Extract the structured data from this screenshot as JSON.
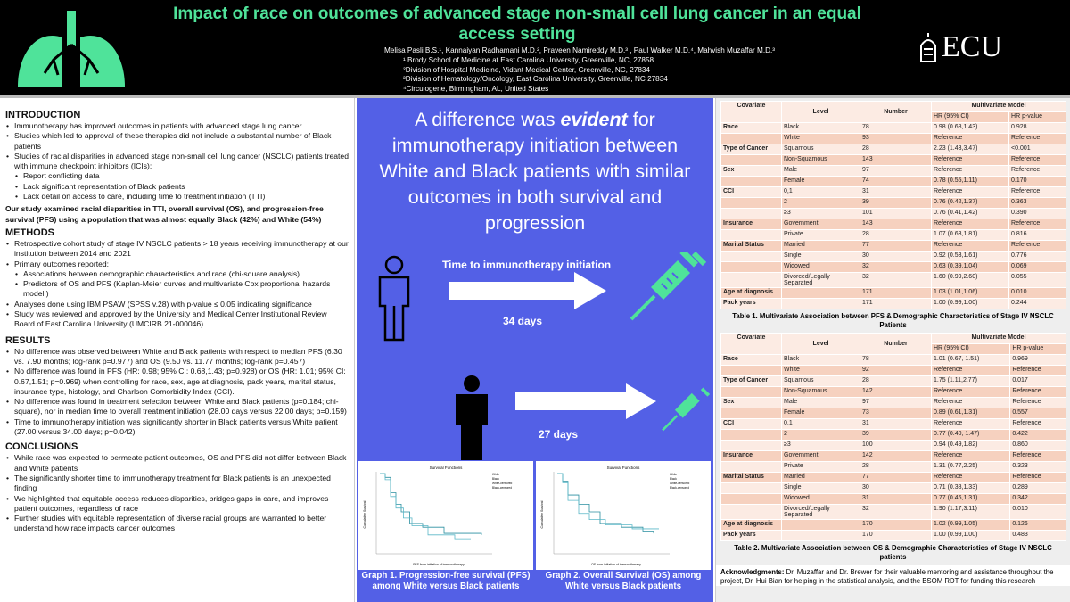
{
  "header": {
    "title": "Impact of race on outcomes of advanced stage non-small cell lung cancer in an equal access setting",
    "authors": "Melisa Pasli B.S.¹, Kannaiyan Radhamani M.D.², Praveen Namireddy M.D.³ , Paul Walker M.D.⁴, Mahvish Muzaffar M.D.³",
    "affiliations": [
      "¹ Brody School of Medicine at East Carolina University, Greenville, NC, 27858",
      "²Division of Hospital Medicine, Vidant Medical Center, Greenville, NC, 27834",
      "³Division of Hematology/Oncology, East Carolina University, Greenville, NC 27834",
      "⁴Circulogene, Birmingham, AL, United States"
    ],
    "logo_text": "ECU",
    "accent": "#4fe39a"
  },
  "intro": {
    "heading": "INTRODUCTION",
    "items": [
      "Immunotherapy has improved outcomes in patients with advanced stage lung cancer",
      "Studies which led to approval of these therapies did not include a substantial number of Black patients",
      "Studies of racial disparities in advanced stage non-small cell lung cancer (NSCLC) patients treated with immune checkpoint inhibitors (ICIs):"
    ],
    "subitems": [
      "Report conflicting data",
      "Lack significant representation of Black patients",
      "Lack detail on access to care, including time to treatment initiation (TTI)"
    ],
    "aim": "Our study examined racial disparities in TTI, overall survival (OS), and progression-free survival (PFS) using a population that was almost equally Black (42%) and White (54%)"
  },
  "methods": {
    "heading": "METHODS",
    "items": [
      "Retrospective cohort study of stage IV NSCLC patients > 18 years receiving immunotherapy at our institution between 2014 and 2021",
      "Primary outcomes reported:",
      "Associations between demographic characteristics and race (chi-square analysis)",
      "Predictors of OS and PFS (Kaplan-Meier curves and multivariate Cox proportional hazards model )",
      "Analyses done using IBM PSAW (SPSS v.28) with p-value ≤ 0.05 indicating significance",
      "Study was reviewed and approved by the University and Medical Center Institutional Review Board of East Carolina University (UMCIRB 21-000046)"
    ]
  },
  "results": {
    "heading": "RESULTS",
    "items": [
      "No difference was observed between White and Black patients with respect to median PFS (6.30 vs. 7.90 months; log-rank p=0.977) and OS (9.50 vs. 11.77 months; log-rank p=0.457)",
      "No difference was found in PFS (HR: 0.98; 95% CI: 0.68,1.43; p=0.928) or OS (HR: 1.01; 95% CI: 0.67,1.51; p=0.969) when controlling for race, sex, age at diagnosis, pack years, marital status, insurance type, histology, and Charlson Comorbidity Index (CCI).",
      "No difference was found in treatment selection between White and Black patients (p=0.184; chi-square), nor in median time to overall treatment initiation (28.00 days versus 22.00 days; p=0.159)",
      "Time to immunotherapy initiation was significantly shorter in Black patients versus White patient (27.00 versus 34.00 days; p=0.042)"
    ]
  },
  "conclusions": {
    "heading": "CONCLUSIONS",
    "items": [
      "While race was expected to permeate patient outcomes, OS and PFS did not differ between Black and White patients",
      "The significantly shorter time to immunotherapy treatment for Black patients is an unexpected finding",
      "We highlighted that equitable access reduces disparities, bridges gaps in care, and improves patient outcomes, regardless of race",
      "Further studies with equitable representation of diverse racial groups are warranted to better understand how race impacts cancer outcomes"
    ]
  },
  "middle": {
    "headline_pre": "A difference was ",
    "headline_em": "evident",
    "headline_post": " for immunotherapy initiation between White and Black patients with similar outcomes in both survival and progression",
    "tti_label": "Time to immunotherapy initiation",
    "white_days": "34 days",
    "black_days": "27 days",
    "bg": "#5360e6",
    "graphs": [
      {
        "title": "Survival Functions",
        "ylabel": "Cumulative Survival",
        "xlabel": "PFS from initiation of immunotherapy",
        "legend": [
          "White",
          "Black",
          "White-censored",
          "Black-censored"
        ],
        "caption": "Graph 1. Progression-free survival (PFS) among White versus Black patients"
      },
      {
        "title": "Survival Functions",
        "ylabel": "Cumulative Survival",
        "xlabel": "OS from initiation of immunotherapy",
        "legend": [
          "White",
          "Black",
          "White-censored",
          "Black-censored"
        ],
        "caption": "Graph 2. Overall Survival (OS) among White versus Black patients"
      }
    ]
  },
  "tables": [
    {
      "header": [
        "Covariate",
        "Level",
        "Number",
        "Multivariate Model",
        "HR (95% CI)",
        "HR p-value"
      ],
      "rows": [
        [
          "Race",
          "Black",
          "78",
          "0.98 (0.68,1.43)",
          "0.928"
        ],
        [
          "",
          "White",
          "93",
          "Reference",
          "Reference"
        ],
        [
          "Type of Cancer",
          "Squamous",
          "28",
          "2.23 (1.43,3.47)",
          "<0.001"
        ],
        [
          "",
          "Non-Squamous",
          "143",
          "Reference",
          "Reference"
        ],
        [
          "Sex",
          "Male",
          "97",
          "Reference",
          "Reference"
        ],
        [
          "",
          "Female",
          "74",
          "0.78 (0.55,1.11)",
          "0.170"
        ],
        [
          "CCI",
          "0,1",
          "31",
          "Reference",
          "Reference"
        ],
        [
          "",
          "2",
          "39",
          "0.76 (0.42,1.37)",
          "0.363"
        ],
        [
          "",
          "≥3",
          "101",
          "0.76 (0.41,1.42)",
          "0.390"
        ],
        [
          "Insurance",
          "Government",
          "143",
          "Reference",
          "Reference"
        ],
        [
          "",
          "Private",
          "28",
          "1.07 (0.63,1.81)",
          "0.816"
        ],
        [
          "Marital Status",
          "Married",
          "77",
          "Reference",
          "Reference"
        ],
        [
          "",
          "Single",
          "30",
          "0.92 (0.53,1.61)",
          "0.776"
        ],
        [
          "",
          "Widowed",
          "32",
          "0.63 (0.39,1.04)",
          "0.069"
        ],
        [
          "",
          "Divorced/Legally Separated",
          "32",
          "1.60 (0.99,2.60)",
          "0.055"
        ],
        [
          "Age at diagnosis",
          "",
          "171",
          "1.03 (1.01,1.06)",
          "0.010"
        ],
        [
          "Pack years",
          "",
          "171",
          "1.00 (0.99,1.00)",
          "0.244"
        ]
      ],
      "caption": "Table 1. Multivariate Association between PFS &  Demographic Characteristics of Stage IV NSCLC Patients"
    },
    {
      "header": [
        "Covariate",
        "Level",
        "Number",
        "Multivariate Model",
        "HR (95% CI)",
        "HR p-value"
      ],
      "rows": [
        [
          "Race",
          "Black",
          "78",
          "1.01 (0.67, 1.51)",
          "0.969"
        ],
        [
          "",
          "White",
          "92",
          "Reference",
          "Reference"
        ],
        [
          "Type of Cancer",
          "Squamous",
          "28",
          "1.75 (1.11,2.77)",
          "0.017"
        ],
        [
          "",
          "Non-Squamous",
          "142",
          "Reference",
          "Reference"
        ],
        [
          "Sex",
          "Male",
          "97",
          "Reference",
          "Reference"
        ],
        [
          "",
          "Female",
          "73",
          "0.89 (0.61,1.31)",
          "0.557"
        ],
        [
          "CCI",
          "0,1",
          "31",
          "Reference",
          "Reference"
        ],
        [
          "",
          "2",
          "39",
          "0.77 (0.40, 1.47)",
          "0.422"
        ],
        [
          "",
          "≥3",
          "100",
          "0.94 (0.49,1.82)",
          "0.860"
        ],
        [
          "Insurance",
          "Government",
          "142",
          "Reference",
          "Reference"
        ],
        [
          "",
          "Private",
          "28",
          "1.31 (0.77,2.25)",
          "0.323"
        ],
        [
          "Marital Status",
          "Married",
          "77",
          "Reference",
          "Reference"
        ],
        [
          "",
          "Single",
          "30",
          "0.71 (0.38,1.33)",
          "0.289"
        ],
        [
          "",
          "Widowed",
          "31",
          "0.77 (0.46,1.31)",
          "0.342"
        ],
        [
          "",
          "Divorced/Legally Separated",
          "32",
          "1.90 (1.17,3.11)",
          "0.010"
        ],
        [
          "Age at diagnosis",
          "",
          "170",
          "1.02 (0.99,1.05)",
          "0.126"
        ],
        [
          "Pack years",
          "",
          "170",
          "1.00 (0.99,1.00)",
          "0.483"
        ]
      ],
      "caption": "Table 2. Multivariate Association between OS &  Demographic Characteristics of Stage IV NSCLC patients"
    }
  ],
  "ack": {
    "label": "Acknowledgments:",
    "text": " Dr. Muzaffar and Dr. Brewer for their valuable mentoring and assistance throughout the project, Dr. Hui Bian for helping in the statistical analysis, and the BSOM RDT for funding this research"
  }
}
